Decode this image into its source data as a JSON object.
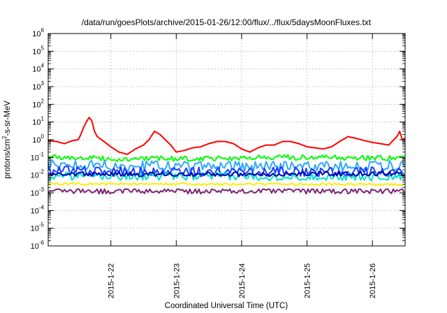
{
  "chart_data": {
    "type": "line",
    "title": "/data/run/goesPlots/archive/2015-01-26/12:00/flux/../flux/5daysMoonFluxes.txt",
    "xlabel": "Coordinated Universal Time (UTC)",
    "ylabel": "protons/cm²-s-sr-MeV",
    "ylabel_parts": {
      "pre": "protons/cm",
      "sup": "2",
      "post": "-s-sr-MeV"
    },
    "y_scale": "log",
    "ylim": [
      1e-06,
      1000000.0
    ],
    "y_ticks": [
      {
        "base": "10",
        "exp": "-6"
      },
      {
        "base": "10",
        "exp": "-5"
      },
      {
        "base": "10",
        "exp": "-4"
      },
      {
        "base": "10",
        "exp": "-3"
      },
      {
        "base": "10",
        "exp": "-2"
      },
      {
        "base": "10",
        "exp": "-1"
      },
      {
        "base": "10",
        "exp": "0"
      },
      {
        "base": "10",
        "exp": "1"
      },
      {
        "base": "10",
        "exp": "2"
      },
      {
        "base": "10",
        "exp": "3"
      },
      {
        "base": "10",
        "exp": "4"
      },
      {
        "base": "10",
        "exp": "5"
      },
      {
        "base": "10",
        "exp": "6"
      }
    ],
    "xlim": [
      "2015-01-21T01:00",
      "2015-01-26T12:00"
    ],
    "x_ticks": [
      "2015-1-22",
      "2015-1-23",
      "2015-1-24",
      "2015-1-25",
      "2015-1-26"
    ],
    "grid": true,
    "series": [
      {
        "color": "#ff0000",
        "points": [
          [
            "2015-01-21T01:00",
            0.9
          ],
          [
            "2015-01-21T04:00",
            0.8
          ],
          [
            "2015-01-21T07:00",
            0.6
          ],
          [
            "2015-01-21T10:00",
            0.9
          ],
          [
            "2015-01-21T12:00",
            1.0
          ],
          [
            "2015-01-21T13:00",
            2.0
          ],
          [
            "2015-01-21T14:00",
            5.0
          ],
          [
            "2015-01-21T15:00",
            10.0
          ],
          [
            "2015-01-21T16:00",
            18.0
          ],
          [
            "2015-01-21T17:00",
            12.0
          ],
          [
            "2015-01-21T18:00",
            3.0
          ],
          [
            "2015-01-21T19:00",
            1.5
          ],
          [
            "2015-01-21T21:00",
            0.9
          ],
          [
            "2015-01-22T00:00",
            0.4
          ],
          [
            "2015-01-22T03:00",
            0.2
          ],
          [
            "2015-01-22T06:00",
            0.15
          ],
          [
            "2015-01-22T09:00",
            0.3
          ],
          [
            "2015-01-22T12:00",
            0.5
          ],
          [
            "2015-01-22T14:00",
            1.0
          ],
          [
            "2015-01-22T16:00",
            3.0
          ],
          [
            "2015-01-22T18:00",
            2.0
          ],
          [
            "2015-01-22T20:00",
            1.0
          ],
          [
            "2015-01-22T22:00",
            0.5
          ],
          [
            "2015-01-23T00:00",
            0.2
          ],
          [
            "2015-01-23T03:00",
            0.25
          ],
          [
            "2015-01-23T06:00",
            0.35
          ],
          [
            "2015-01-23T09:00",
            0.4
          ],
          [
            "2015-01-23T12:00",
            0.6
          ],
          [
            "2015-01-23T15:00",
            0.8
          ],
          [
            "2015-01-23T18:00",
            0.8
          ],
          [
            "2015-01-23T21:00",
            0.6
          ],
          [
            "2015-01-24T00:00",
            0.3
          ],
          [
            "2015-01-24T03:00",
            0.2
          ],
          [
            "2015-01-24T06:00",
            0.35
          ],
          [
            "2015-01-24T09:00",
            0.5
          ],
          [
            "2015-01-24T12:00",
            0.5
          ],
          [
            "2015-01-24T15:00",
            0.8
          ],
          [
            "2015-01-24T18:00",
            0.8
          ],
          [
            "2015-01-24T21:00",
            0.6
          ],
          [
            "2015-01-25T00:00",
            0.4
          ],
          [
            "2015-01-25T03:00",
            0.35
          ],
          [
            "2015-01-25T06:00",
            0.3
          ],
          [
            "2015-01-25T09:00",
            0.4
          ],
          [
            "2015-01-25T12:00",
            0.8
          ],
          [
            "2015-01-25T15:00",
            1.5
          ],
          [
            "2015-01-25T18:00",
            1.2
          ],
          [
            "2015-01-25T21:00",
            0.9
          ],
          [
            "2015-01-26T00:00",
            0.7
          ],
          [
            "2015-01-26T03:00",
            0.6
          ],
          [
            "2015-01-26T06:00",
            0.5
          ],
          [
            "2015-01-26T09:00",
            1.5
          ],
          [
            "2015-01-26T10:00",
            3.0
          ],
          [
            "2015-01-26T11:00",
            1.0
          ],
          [
            "2015-01-26T12:00",
            1.2
          ]
        ]
      },
      {
        "color": "#00ff00",
        "baseline": [
          [
            "2015-01-21T01:00",
            0.11
          ],
          [
            "2015-01-22T03:00",
            0.08
          ],
          [
            "2015-01-23T12:00",
            0.09
          ],
          [
            "2015-01-25T00:00",
            0.1
          ],
          [
            "2015-01-26T12:00",
            0.09
          ]
        ],
        "range": [
          0.05,
          0.15
        ]
      },
      {
        "color": "#2fa7ff",
        "baseline": [
          [
            "2015-01-21T01:00",
            0.04
          ],
          [
            "2015-01-23T00:00",
            0.03
          ],
          [
            "2015-01-26T12:00",
            0.035
          ]
        ],
        "range": [
          0.01,
          0.08
        ]
      },
      {
        "color": "#1a3cff",
        "baseline": [
          [
            "2015-01-21T01:00",
            0.018
          ],
          [
            "2015-01-23T00:00",
            0.015
          ],
          [
            "2015-01-26T12:00",
            0.016
          ]
        ],
        "range": [
          0.006,
          0.04
        ]
      },
      {
        "color": "#00e0d0",
        "baseline": [
          [
            "2015-01-21T01:00",
            0.009
          ],
          [
            "2015-01-26T12:00",
            0.008
          ]
        ],
        "range": [
          0.004,
          0.02
        ]
      },
      {
        "color": "#0000aa",
        "baseline": [
          [
            "2015-01-21T01:00",
            0.012
          ],
          [
            "2015-01-23T00:00",
            0.011
          ],
          [
            "2015-01-26T12:00",
            0.012
          ]
        ],
        "range": [
          0.008,
          0.02
        ]
      },
      {
        "color": "#ffee00",
        "baseline": [
          [
            "2015-01-21T01:00",
            0.0032
          ],
          [
            "2015-01-26T12:00",
            0.003
          ]
        ],
        "range": [
          0.0025,
          0.004
        ]
      },
      {
        "color": "#7b2570",
        "baseline": [
          [
            "2015-01-21T01:00",
            0.0013
          ],
          [
            "2015-01-26T12:00",
            0.0013
          ]
        ],
        "range": [
          0.0005,
          0.0016
        ]
      }
    ]
  }
}
